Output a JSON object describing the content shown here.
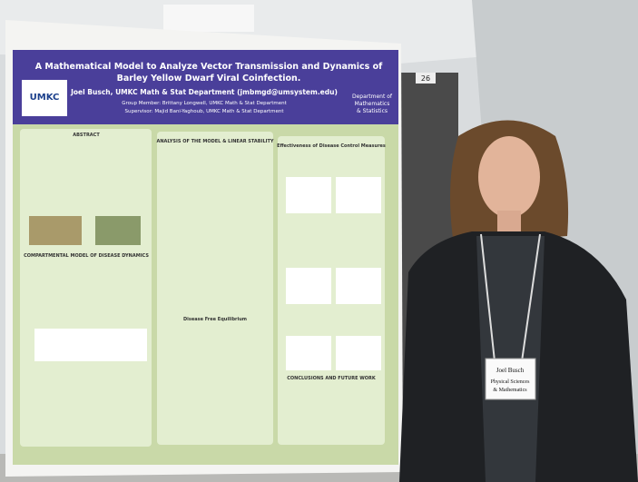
{
  "poster": {
    "title": "A Mathematical Model to Analyze Vector Transmission and Dynamics of",
    "title_line2": "Barley Yellow Dwarf Viral Coinfection.",
    "logo": "UMKC",
    "author": "Joel Busch, UMKC Math & Stat Department (jmbmgd@umsystem.edu)",
    "group_member": "Group Member: Brittany Longwell, UMKC Math & Stat Department",
    "supervisor": "Supervisor: Majid Bani-Yaghoub, UMKC Math & Stat Department",
    "department": [
      "Department of",
      "Mathematics",
      "& Statistics"
    ],
    "sections": [
      "ABSTRACT",
      "COMPARTMENTAL MODEL OF DISEASE DYNAMICS",
      "ANALYSIS OF THE MODEL & LINEAR STABILITY",
      "Disease Free Equilibrium",
      "Effectiveness of Disease Control Measures",
      "CONCLUSIONS AND FUTURE WORK"
    ]
  },
  "room_sign": "26",
  "name_tag": {
    "name": "Joel Busch",
    "line1": "Physical Sciences",
    "line2": "& Mathematics"
  }
}
